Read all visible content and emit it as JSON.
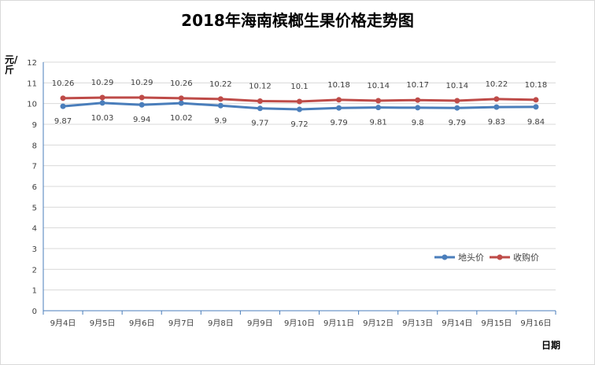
{
  "chart_data": {
    "type": "line",
    "title": "2018年海南槟榔生果价格走势图",
    "xlabel": "日期",
    "ylabel": "元/斤",
    "ylim": [
      0,
      12
    ],
    "yticks": [
      0,
      1,
      2,
      3,
      4,
      5,
      6,
      7,
      8,
      9,
      10,
      11,
      12
    ],
    "grid": true,
    "legend_position": "right",
    "categories": [
      "9月4日",
      "9月5日",
      "9月6日",
      "9月7日",
      "9月8日",
      "9月9日",
      "9月10日",
      "9月11日",
      "9月12日",
      "9月13日",
      "9月14日",
      "9月15日",
      "9月16日"
    ],
    "series": [
      {
        "name": "地头价",
        "color": "#4a7ebb",
        "values": [
          9.87,
          10.03,
          9.94,
          10.02,
          9.9,
          9.77,
          9.72,
          9.79,
          9.81,
          9.8,
          9.79,
          9.83,
          9.84
        ],
        "label_position": "below"
      },
      {
        "name": "收购价",
        "color": "#be4b48",
        "values": [
          10.26,
          10.29,
          10.29,
          10.26,
          10.22,
          10.12,
          10.1,
          10.18,
          10.14,
          10.17,
          10.14,
          10.22,
          10.18
        ],
        "label_position": "above"
      }
    ]
  }
}
